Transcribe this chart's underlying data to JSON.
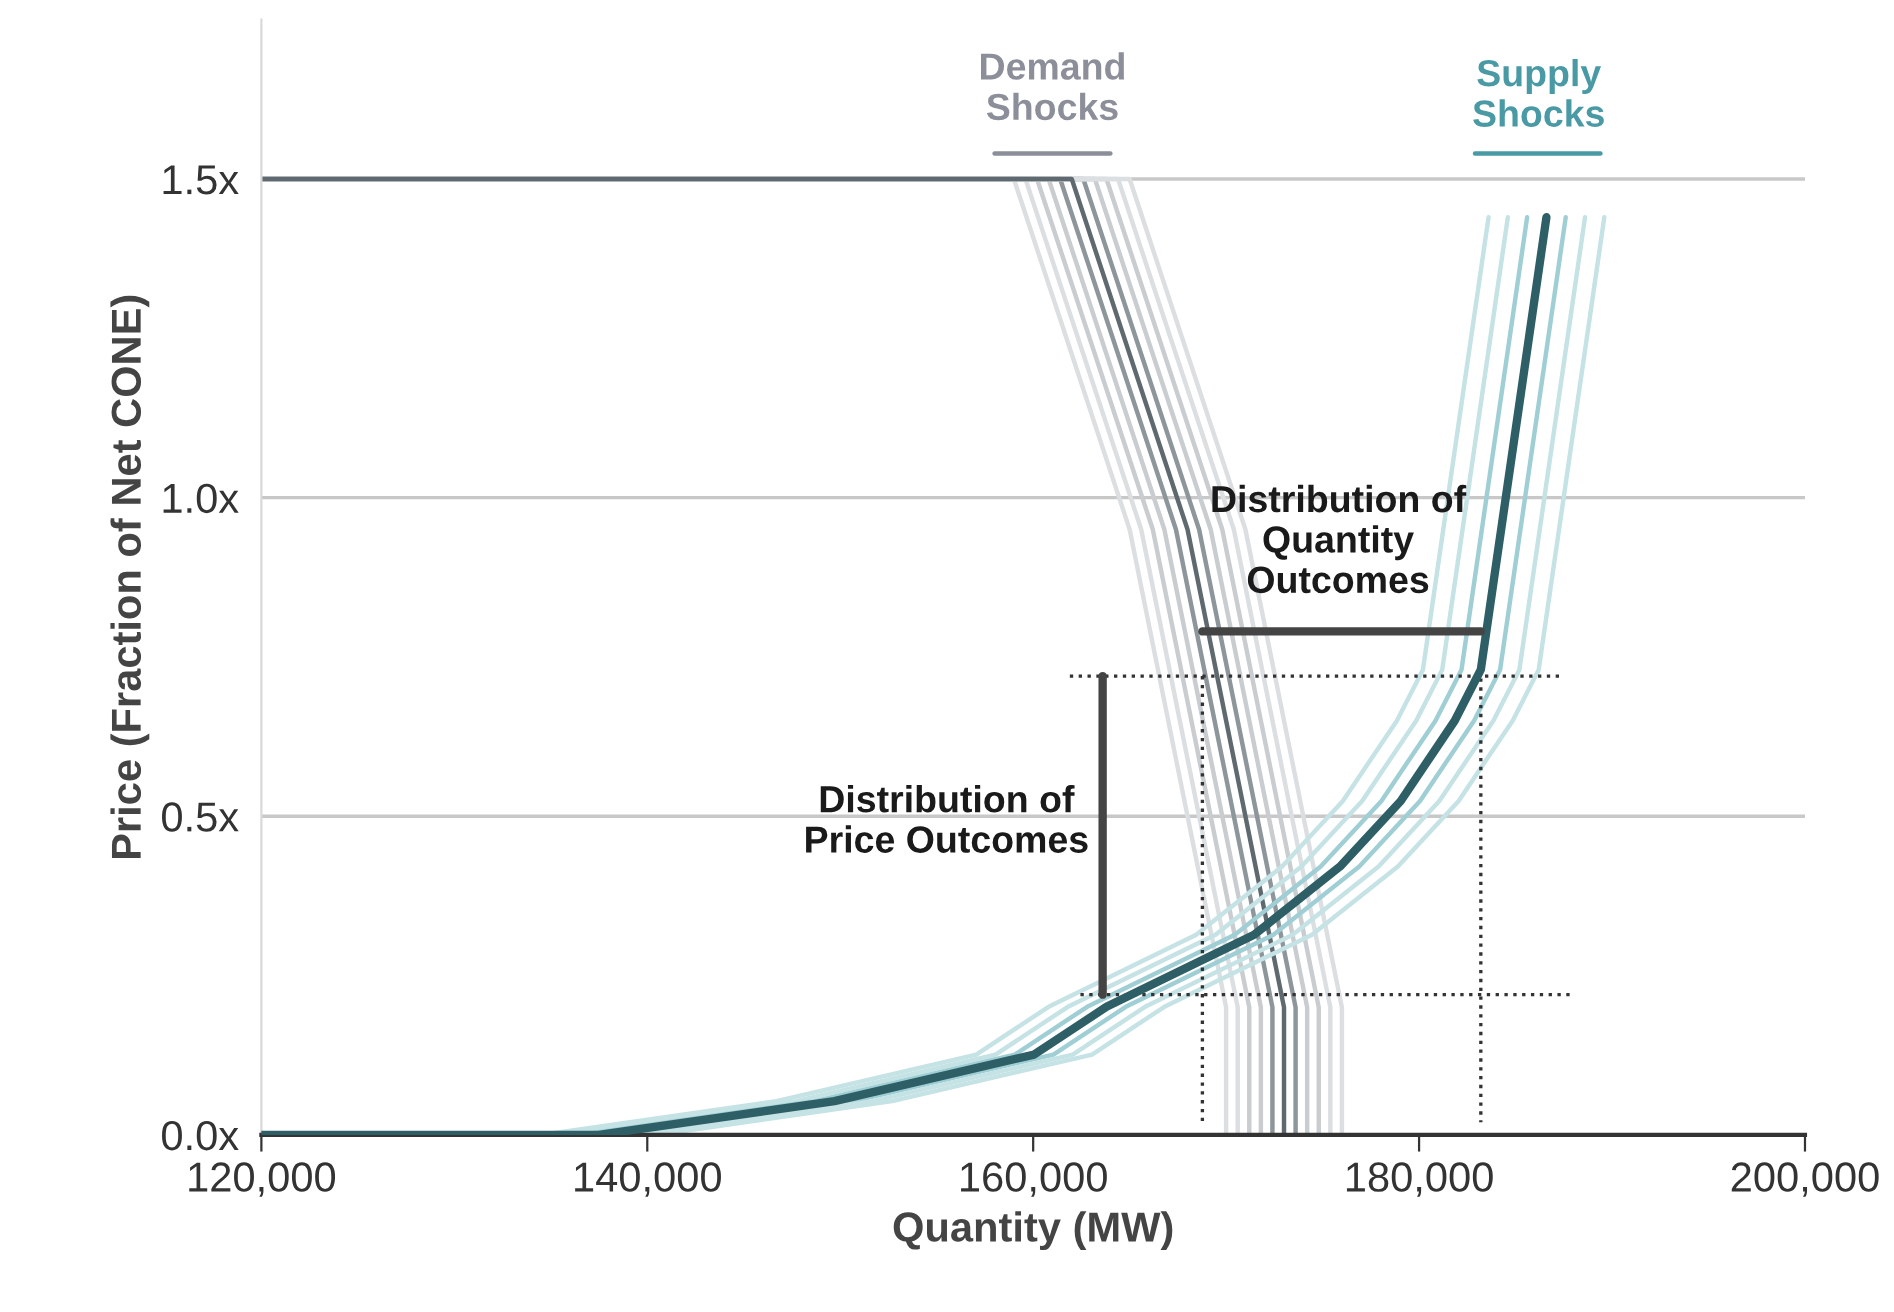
{
  "chart_data": {
    "type": "line",
    "xlabel": "Quantity (MW)",
    "ylabel": "Price (Fraction of Net CONE)",
    "xlim": [
      120000,
      200000
    ],
    "ylim": [
      0,
      1.75
    ],
    "xticks": [
      {
        "value": 120000,
        "label": "120,000"
      },
      {
        "value": 140000,
        "label": "140,000"
      },
      {
        "value": 160000,
        "label": "160,000"
      },
      {
        "value": 180000,
        "label": "180,000"
      },
      {
        "value": 200000,
        "label": "200,000"
      }
    ],
    "yticks": [
      {
        "value": 0,
        "label": "0.0x"
      },
      {
        "value": 0.5,
        "label": "0.5x"
      },
      {
        "value": 1.0,
        "label": "1.0x"
      },
      {
        "value": 1.5,
        "label": "1.5x"
      }
    ],
    "grid": "y",
    "legend": false,
    "marker": "none",
    "series": [
      {
        "color": "#dcdfe1",
        "x": [
          120000,
          159000,
          165000,
          170000,
          170000
        ],
        "values": [
          1.5,
          1.5,
          0.95,
          0.2,
          0
        ]
      },
      {
        "color": "#dcdfe1",
        "x": [
          120000,
          159600,
          165600,
          170600,
          170600
        ],
        "values": [
          1.5,
          1.5,
          0.95,
          0.2,
          0
        ]
      },
      {
        "color": "#c9cdd0",
        "x": [
          120000,
          160200,
          166200,
          171200,
          171200
        ],
        "values": [
          1.5,
          1.5,
          0.95,
          0.2,
          0
        ]
      },
      {
        "color": "#c9cdd0",
        "x": [
          120000,
          160800,
          166800,
          171800,
          171800
        ],
        "values": [
          1.5,
          1.5,
          0.95,
          0.2,
          0
        ]
      },
      {
        "color": "#8d969b",
        "x": [
          120000,
          161400,
          167400,
          172400,
          172400
        ],
        "values": [
          1.5,
          1.5,
          0.95,
          0.2,
          0
        ]
      },
      {
        "color": "#8d969b",
        "x": [
          120000,
          162600,
          168600,
          173600,
          173600
        ],
        "values": [
          1.5,
          1.5,
          0.95,
          0.2,
          0
        ]
      },
      {
        "color": "#c9cdd0",
        "x": [
          120000,
          163200,
          169200,
          174200,
          174200
        ],
        "values": [
          1.5,
          1.5,
          0.95,
          0.2,
          0
        ]
      },
      {
        "color": "#c9cdd0",
        "x": [
          120000,
          163800,
          169800,
          174800,
          174800
        ],
        "values": [
          1.5,
          1.5,
          0.95,
          0.2,
          0
        ]
      },
      {
        "color": "#dcdfe1",
        "x": [
          120000,
          164400,
          170400,
          175400,
          175400
        ],
        "values": [
          1.5,
          1.5,
          0.95,
          0.2,
          0
        ]
      },
      {
        "color": "#dcdfe1",
        "x": [
          120000,
          165000,
          171000,
          176000,
          176000
        ],
        "values": [
          1.5,
          1.5,
          0.95,
          0.2,
          0
        ]
      },
      {
        "color": "#5f6a70",
        "x": [
          120000,
          162000,
          168000,
          173000,
          173000
        ],
        "values": [
          1.5,
          1.5,
          0.95,
          0.2,
          0
        ]
      },
      {
        "color": "#c5e2e5",
        "x": [
          120000,
          134500,
          146700,
          157050,
          160800,
          168450,
          172900,
          176050,
          178850,
          180200,
          183600
        ],
        "values": [
          0,
          0,
          0.053,
          0.126,
          0.201,
          0.314,
          0.421,
          0.524,
          0.65,
          0.73,
          1.44
        ]
      },
      {
        "color": "#c5e2e5",
        "x": [
          120000,
          135500,
          147700,
          158050,
          161800,
          169450,
          173900,
          177050,
          179850,
          181200,
          184600
        ],
        "values": [
          0,
          0,
          0.053,
          0.126,
          0.201,
          0.314,
          0.421,
          0.524,
          0.65,
          0.73,
          1.44
        ]
      },
      {
        "color": "#9fcfd5",
        "x": [
          120000,
          136500,
          148700,
          159050,
          162800,
          170450,
          174900,
          178050,
          180850,
          182200,
          185600
        ],
        "values": [
          0,
          0,
          0.053,
          0.126,
          0.201,
          0.314,
          0.421,
          0.524,
          0.65,
          0.73,
          1.44
        ]
      },
      {
        "color": "#9fcfd5",
        "x": [
          120000,
          138500,
          150700,
          161050,
          164800,
          172450,
          176900,
          180050,
          182850,
          184200,
          187600
        ],
        "values": [
          0,
          0,
          0.053,
          0.126,
          0.201,
          0.314,
          0.421,
          0.524,
          0.65,
          0.73,
          1.44
        ]
      },
      {
        "color": "#c5e2e5",
        "x": [
          120000,
          139500,
          151700,
          162050,
          165800,
          173450,
          177900,
          181050,
          183850,
          185200,
          188600
        ],
        "values": [
          0,
          0,
          0.053,
          0.126,
          0.201,
          0.314,
          0.421,
          0.524,
          0.65,
          0.73,
          1.44
        ]
      },
      {
        "color": "#c5e2e5",
        "x": [
          120000,
          140500,
          152700,
          163050,
          166800,
          174450,
          178900,
          182050,
          184850,
          186200,
          189600
        ],
        "values": [
          0,
          0,
          0.053,
          0.126,
          0.201,
          0.314,
          0.421,
          0.524,
          0.65,
          0.73,
          1.44
        ]
      },
      {
        "color": "#2e5e66",
        "x": [
          120000,
          137500,
          149700,
          160050,
          163800,
          171450,
          175900,
          179050,
          181850,
          183200,
          186600
        ],
        "values": [
          0,
          0,
          0.053,
          0.126,
          0.201,
          0.314,
          0.421,
          0.524,
          0.65,
          0.73,
          1.44
        ]
      },
      {
        "color": "#333333",
        "line_style": "dotted",
        "x": [
          161900,
          187350
        ],
        "values": [
          0.72,
          0.72
        ]
      },
      {
        "color": "#333333",
        "line_style": "dotted",
        "x": [
          162450,
          188050
        ],
        "values": [
          0.22,
          0.22
        ]
      },
      {
        "color": "#333333",
        "line_style": "dotted",
        "x": [
          168770,
          168770
        ],
        "values": [
          0.72,
          0.02
        ]
      },
      {
        "color": "#333333",
        "line_style": "dotted",
        "x": [
          183200,
          183200
        ],
        "values": [
          0.73,
          0.02
        ]
      },
      {
        "color": "#444444",
        "x": [
          163600,
          163600
        ],
        "values": [
          0.72,
          0.22
        ]
      },
      {
        "color": "#444444",
        "x": [
          168770,
          183200
        ],
        "values": [
          0.79,
          0.79
        ]
      },
      {
        "color": "#8c8f99",
        "x": [
          158000,
          164000
        ],
        "values": [
          1.54,
          1.54
        ]
      },
      {
        "color": "#4a9aa5",
        "x": [
          182900,
          189400
        ],
        "values": [
          1.54,
          1.54
        ]
      }
    ],
    "annotations": [
      "Demand\nShocks",
      "Supply\nShocks",
      "Distribution of\nQuantity\nOutcomes",
      "Distribution of\nPrice Outcomes"
    ]
  }
}
